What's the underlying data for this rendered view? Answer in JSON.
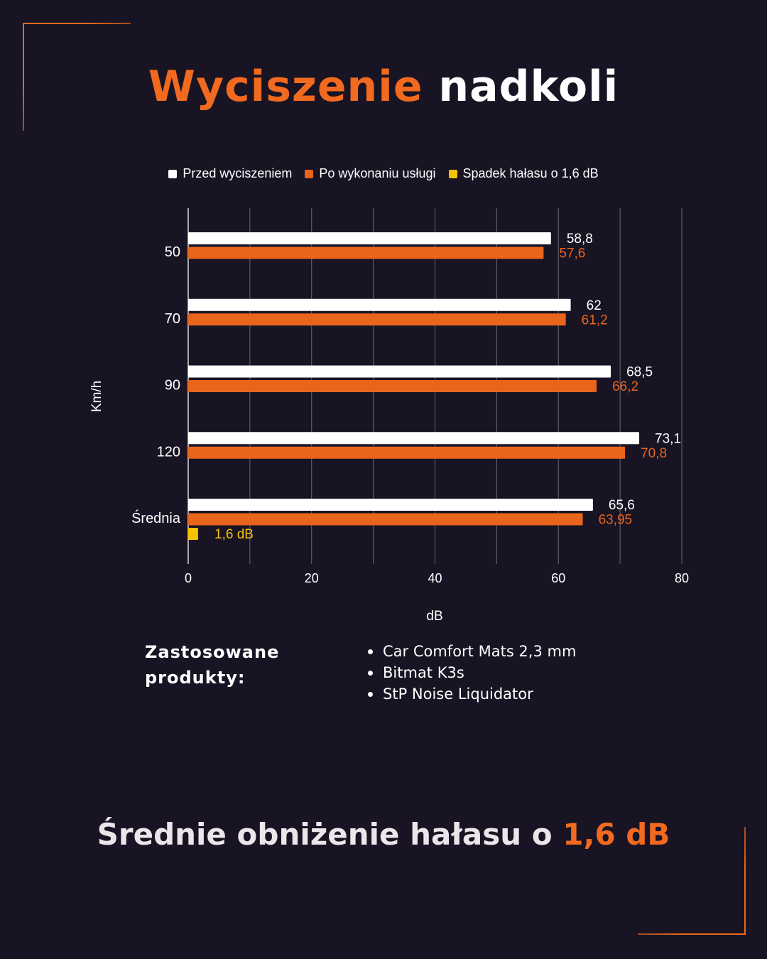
{
  "header": {
    "title_accent": "Wyciszenie",
    "title_rest": "nadkoli"
  },
  "colors": {
    "background": "#181424",
    "accent": "#f26a1f",
    "before": "#ffffff",
    "after": "#e8651b",
    "drop": "#f5c300"
  },
  "chart_data": {
    "type": "bar",
    "orientation": "horizontal",
    "categories": [
      "50",
      "70",
      "90",
      "120",
      "Średnia"
    ],
    "series": [
      {
        "name": "Przed wyciszeniem",
        "values": [
          58.8,
          62,
          68.5,
          73.1,
          65.6
        ],
        "labels": [
          "58,8",
          "62",
          "68,5",
          "73,1",
          "65,6"
        ]
      },
      {
        "name": "Po wykonaniu usługi",
        "values": [
          57.6,
          61.2,
          66.2,
          70.8,
          63.95
        ],
        "labels": [
          "57,6",
          "61,2",
          "66,2",
          "70,8",
          "63,95"
        ]
      },
      {
        "name": "Spadek hałasu o 1,6 dB",
        "values": [
          null,
          null,
          null,
          null,
          1.6
        ],
        "labels": [
          "",
          "",
          "",
          "",
          "1,6 dB"
        ]
      }
    ],
    "xlabel": "dB",
    "ylabel": "Km/h",
    "xlim": [
      0,
      80
    ],
    "xticks": [
      0,
      20,
      40,
      60,
      80
    ],
    "grid": true,
    "legend": "top-center"
  },
  "products": {
    "heading_line1": "Zastosowane",
    "heading_line2": "produkty:",
    "items": [
      "Car Comfort Mats 2,3 mm",
      "Bitmat K3s",
      "StP Noise Liquidator"
    ]
  },
  "summary": {
    "text": "Średnie obniżenie hałasu o",
    "highlight": "1,6 dB"
  }
}
